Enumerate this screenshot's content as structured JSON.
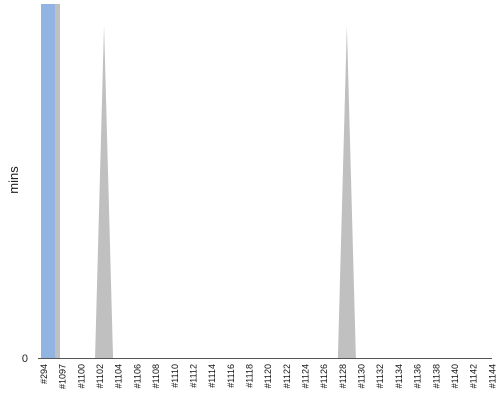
{
  "chart_data": {
    "type": "area",
    "ylabel": "mins",
    "xlabel": "",
    "yticks": [
      "0"
    ],
    "categories": [
      "#294",
      "#1097",
      "#1100",
      "#1102",
      "#1104",
      "#1106",
      "#1108",
      "#1110",
      "#1112",
      "#1114",
      "#1116",
      "#1118",
      "#1120",
      "#1122",
      "#1124",
      "#1126",
      "#1128",
      "#1130",
      "#1132",
      "#1134",
      "#1136",
      "#1138",
      "#1140",
      "#1142",
      "#1144"
    ],
    "spikes": [
      {
        "category": "#1102",
        "value": 0.94
      },
      {
        "category": "#1128",
        "value": 0.94
      }
    ],
    "highlight_bar": {
      "category": "#294",
      "value": 1.0
    },
    "colors": {
      "area": "#c0c0c0",
      "highlight": "#92b4e3",
      "axis": "#555555"
    }
  }
}
